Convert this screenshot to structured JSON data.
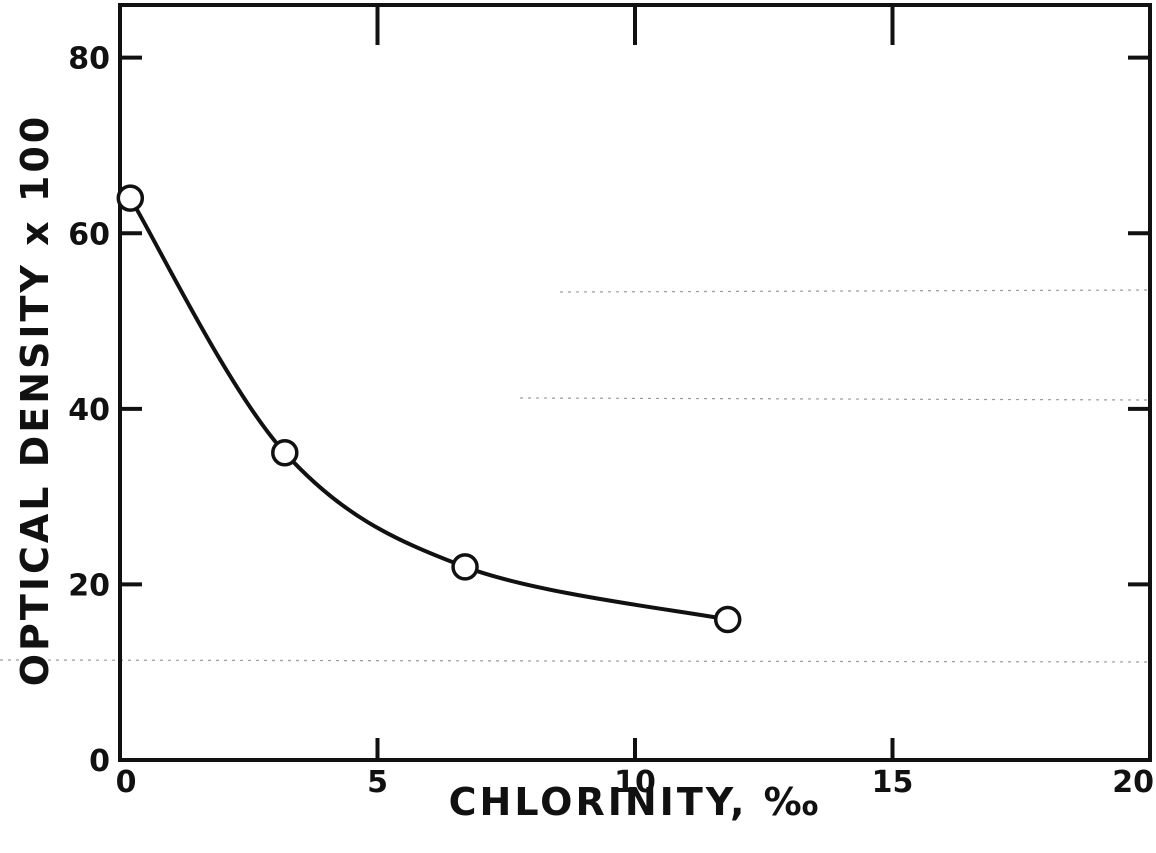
{
  "chart_data": {
    "type": "line",
    "xlabel": "CHLORINITY,   ‰",
    "ylabel": "OPTICAL   DENSITY  x  100",
    "xlim": [
      0,
      20
    ],
    "ylim": [
      0,
      86
    ],
    "x_ticks": [
      "0",
      "5",
      "10",
      "15",
      "20"
    ],
    "y_ticks": [
      "0",
      "20",
      "40",
      "60",
      "80"
    ],
    "series": [
      {
        "x": [
          0.2,
          3.2,
          6.7,
          11.8
        ],
        "y": [
          64,
          35,
          22,
          16
        ],
        "marker": "open-circle",
        "smooth": true
      }
    ],
    "grid": false,
    "legend": "none",
    "colors": {
      "ink": "#111111",
      "background": "#ffffff"
    }
  }
}
